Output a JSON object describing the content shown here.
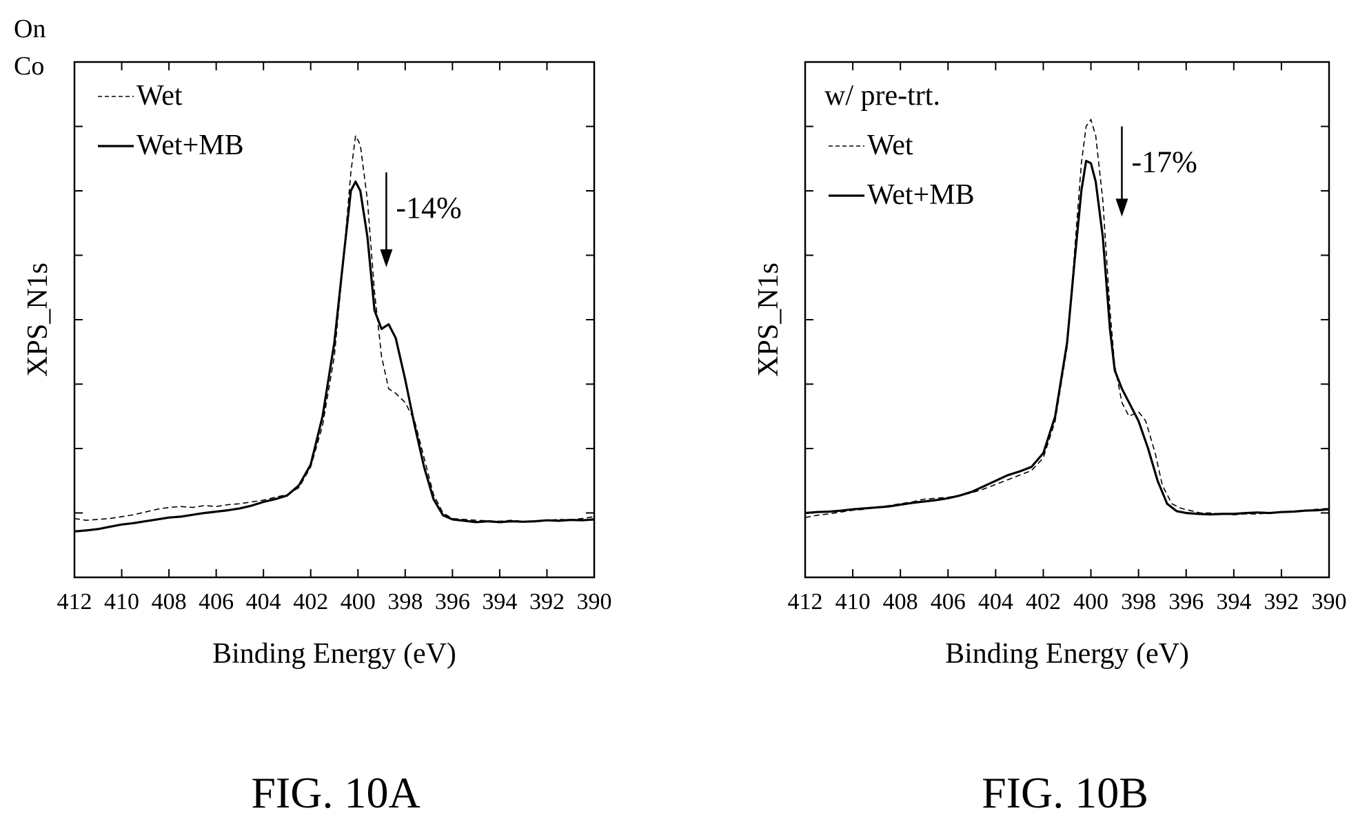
{
  "corner_label": {
    "line1": "On",
    "line2": "Co"
  },
  "chart_data": [
    {
      "type": "line",
      "caption": "FIG. 10A",
      "subtitle": "",
      "xlabel": "Binding Energy (eV)",
      "ylabel": "XPS_N1s",
      "xlim": [
        412,
        390
      ],
      "x_reversed": true,
      "ylim": [
        0,
        1
      ],
      "y_tick_labels_shown": false,
      "x_ticks": [
        412,
        410,
        408,
        406,
        404,
        402,
        400,
        398,
        396,
        394,
        392,
        390
      ],
      "x_tick_labels": [
        "412",
        "410",
        "408",
        "406",
        "404",
        "402",
        "400",
        "398",
        "396",
        "394",
        "392",
        "390"
      ],
      "legend_position": "top-left",
      "annotation": {
        "text": "-14%",
        "x": 398.8,
        "y_from": 0.82,
        "y_to": 0.62
      },
      "series": [
        {
          "name": "Wet",
          "style": "dashed",
          "points": [
            [
              412,
              0.068
            ],
            [
              411.5,
              0.064
            ],
            [
              411,
              0.066
            ],
            [
              410.5,
              0.068
            ],
            [
              410,
              0.072
            ],
            [
              409.5,
              0.076
            ],
            [
              409,
              0.082
            ],
            [
              408.5,
              0.088
            ],
            [
              408,
              0.092
            ],
            [
              407.5,
              0.094
            ],
            [
              407,
              0.092
            ],
            [
              406.5,
              0.096
            ],
            [
              406,
              0.094
            ],
            [
              405.5,
              0.098
            ],
            [
              405,
              0.1
            ],
            [
              404.5,
              0.104
            ],
            [
              404,
              0.108
            ],
            [
              403.5,
              0.114
            ],
            [
              403,
              0.12
            ],
            [
              402.5,
              0.135
            ],
            [
              402,
              0.18
            ],
            [
              401.5,
              0.27
            ],
            [
              401,
              0.42
            ],
            [
              400.6,
              0.64
            ],
            [
              400.3,
              0.82
            ],
            [
              400.1,
              0.9
            ],
            [
              399.9,
              0.88
            ],
            [
              399.6,
              0.76
            ],
            [
              399.3,
              0.56
            ],
            [
              399,
              0.42
            ],
            [
              398.7,
              0.35
            ],
            [
              398.4,
              0.34
            ],
            [
              398,
              0.32
            ],
            [
              397.6,
              0.28
            ],
            [
              397.2,
              0.2
            ],
            [
              396.8,
              0.12
            ],
            [
              396.4,
              0.08
            ],
            [
              396,
              0.068
            ],
            [
              395.5,
              0.066
            ],
            [
              395,
              0.064
            ],
            [
              394.5,
              0.063
            ],
            [
              394,
              0.062
            ],
            [
              393.5,
              0.064
            ],
            [
              393,
              0.062
            ],
            [
              392.5,
              0.063
            ],
            [
              392,
              0.064
            ],
            [
              391.5,
              0.066
            ],
            [
              391,
              0.065
            ],
            [
              390.5,
              0.068
            ],
            [
              390,
              0.072
            ]
          ]
        },
        {
          "name": "Wet+MB",
          "style": "solid",
          "points": [
            [
              412,
              0.04
            ],
            [
              411.5,
              0.042
            ],
            [
              411,
              0.045
            ],
            [
              410.5,
              0.05
            ],
            [
              410,
              0.055
            ],
            [
              409.5,
              0.058
            ],
            [
              409,
              0.062
            ],
            [
              408.5,
              0.066
            ],
            [
              408,
              0.07
            ],
            [
              407.5,
              0.072
            ],
            [
              407,
              0.076
            ],
            [
              406.5,
              0.08
            ],
            [
              406,
              0.083
            ],
            [
              405.5,
              0.086
            ],
            [
              405,
              0.09
            ],
            [
              404.5,
              0.096
            ],
            [
              404,
              0.104
            ],
            [
              403.5,
              0.11
            ],
            [
              403,
              0.118
            ],
            [
              402.5,
              0.14
            ],
            [
              402,
              0.185
            ],
            [
              401.5,
              0.29
            ],
            [
              401,
              0.45
            ],
            [
              400.6,
              0.64
            ],
            [
              400.3,
              0.78
            ],
            [
              400.1,
              0.8
            ],
            [
              399.9,
              0.78
            ],
            [
              399.6,
              0.68
            ],
            [
              399.3,
              0.52
            ],
            [
              399,
              0.48
            ],
            [
              398.7,
              0.49
            ],
            [
              398.4,
              0.46
            ],
            [
              398,
              0.37
            ],
            [
              397.6,
              0.27
            ],
            [
              397.2,
              0.18
            ],
            [
              396.8,
              0.11
            ],
            [
              396.4,
              0.075
            ],
            [
              396,
              0.066
            ],
            [
              395.5,
              0.063
            ],
            [
              395,
              0.06
            ],
            [
              394.5,
              0.062
            ],
            [
              394,
              0.06
            ],
            [
              393.5,
              0.062
            ],
            [
              393,
              0.061
            ],
            [
              392.5,
              0.062
            ],
            [
              392,
              0.064
            ],
            [
              391.5,
              0.063
            ],
            [
              391,
              0.065
            ],
            [
              390.5,
              0.064
            ],
            [
              390,
              0.066
            ]
          ]
        }
      ]
    },
    {
      "type": "line",
      "caption": "FIG. 10B",
      "subtitle": "w/ pre-trt.",
      "xlabel": "Binding Energy (eV)",
      "ylabel": "XPS_N1s",
      "xlim": [
        412,
        390
      ],
      "x_reversed": true,
      "ylim": [
        0,
        1
      ],
      "y_tick_labels_shown": false,
      "x_ticks": [
        412,
        410,
        408,
        406,
        404,
        402,
        400,
        398,
        396,
        394,
        392,
        390
      ],
      "x_tick_labels": [
        "412",
        "410",
        "408",
        "406",
        "404",
        "402",
        "400",
        "398",
        "396",
        "394",
        "392",
        "390"
      ],
      "legend_position": "top-left",
      "annotation": {
        "text": "-17%",
        "x": 398.7,
        "y_from": 0.92,
        "y_to": 0.73
      },
      "series": [
        {
          "name": "Wet",
          "style": "dashed",
          "points": [
            [
              412,
              0.07
            ],
            [
              411.5,
              0.075
            ],
            [
              411,
              0.078
            ],
            [
              410.5,
              0.082
            ],
            [
              410,
              0.086
            ],
            [
              409.5,
              0.088
            ],
            [
              409,
              0.092
            ],
            [
              408.5,
              0.096
            ],
            [
              408,
              0.1
            ],
            [
              407.5,
              0.104
            ],
            [
              407,
              0.11
            ],
            [
              406.5,
              0.112
            ],
            [
              406,
              0.114
            ],
            [
              405.5,
              0.118
            ],
            [
              405,
              0.124
            ],
            [
              404.5,
              0.132
            ],
            [
              404,
              0.142
            ],
            [
              403.5,
              0.152
            ],
            [
              403,
              0.162
            ],
            [
              402.5,
              0.172
            ],
            [
              402,
              0.2
            ],
            [
              401.5,
              0.28
            ],
            [
              401,
              0.44
            ],
            [
              400.7,
              0.64
            ],
            [
              400.4,
              0.84
            ],
            [
              400.2,
              0.92
            ],
            [
              400,
              0.935
            ],
            [
              399.8,
              0.9
            ],
            [
              399.5,
              0.76
            ],
            [
              399.2,
              0.52
            ],
            [
              399,
              0.4
            ],
            [
              398.7,
              0.32
            ],
            [
              398.4,
              0.29
            ],
            [
              398,
              0.3
            ],
            [
              397.7,
              0.28
            ],
            [
              397.3,
              0.21
            ],
            [
              397,
              0.14
            ],
            [
              396.6,
              0.1
            ],
            [
              396.2,
              0.09
            ],
            [
              395.8,
              0.085
            ],
            [
              395.4,
              0.08
            ],
            [
              395,
              0.08
            ],
            [
              394.5,
              0.078
            ],
            [
              394,
              0.076
            ],
            [
              393.5,
              0.078
            ],
            [
              393,
              0.078
            ],
            [
              392.5,
              0.08
            ],
            [
              392,
              0.082
            ],
            [
              391.5,
              0.084
            ],
            [
              391,
              0.086
            ],
            [
              390.5,
              0.088
            ],
            [
              390,
              0.09
            ]
          ]
        },
        {
          "name": "Wet+MB",
          "style": "solid",
          "points": [
            [
              412,
              0.08
            ],
            [
              411.5,
              0.082
            ],
            [
              411,
              0.083
            ],
            [
              410.5,
              0.085
            ],
            [
              410,
              0.088
            ],
            [
              409.5,
              0.09
            ],
            [
              409,
              0.092
            ],
            [
              408.5,
              0.094
            ],
            [
              408,
              0.098
            ],
            [
              407.5,
              0.102
            ],
            [
              407,
              0.105
            ],
            [
              406.5,
              0.108
            ],
            [
              406,
              0.112
            ],
            [
              405.5,
              0.118
            ],
            [
              405,
              0.126
            ],
            [
              404.5,
              0.138
            ],
            [
              404,
              0.15
            ],
            [
              403.5,
              0.162
            ],
            [
              403,
              0.17
            ],
            [
              402.5,
              0.18
            ],
            [
              402,
              0.21
            ],
            [
              401.5,
              0.29
            ],
            [
              401,
              0.45
            ],
            [
              400.7,
              0.62
            ],
            [
              400.4,
              0.78
            ],
            [
              400.2,
              0.845
            ],
            [
              400,
              0.84
            ],
            [
              399.8,
              0.8
            ],
            [
              399.5,
              0.68
            ],
            [
              399.2,
              0.48
            ],
            [
              399,
              0.39
            ],
            [
              398.7,
              0.35
            ],
            [
              398.4,
              0.32
            ],
            [
              398,
              0.28
            ],
            [
              397.6,
              0.22
            ],
            [
              397.2,
              0.15
            ],
            [
              396.8,
              0.1
            ],
            [
              396.4,
              0.084
            ],
            [
              396,
              0.08
            ],
            [
              395.5,
              0.078
            ],
            [
              395,
              0.077
            ],
            [
              394.5,
              0.078
            ],
            [
              394,
              0.078
            ],
            [
              393.5,
              0.08
            ],
            [
              393,
              0.081
            ],
            [
              392.5,
              0.08
            ],
            [
              392,
              0.082
            ],
            [
              391.5,
              0.083
            ],
            [
              391,
              0.085
            ],
            [
              390.5,
              0.086
            ],
            [
              390,
              0.088
            ]
          ]
        }
      ]
    }
  ]
}
